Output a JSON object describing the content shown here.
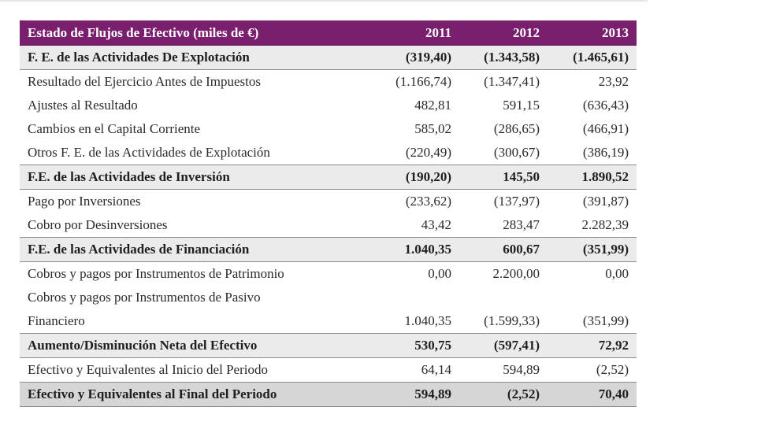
{
  "table": {
    "header": {
      "label": "Estado de Flujos de Efectivo (miles de €)",
      "years": [
        "2011",
        "2012",
        "2013"
      ]
    },
    "rows": [
      {
        "type": "section",
        "label": "F. E. de las Actividades De Explotación",
        "values": [
          "(319,40)",
          "(1.343,58)",
          "(1.465,61)"
        ]
      },
      {
        "type": "item",
        "label": "Resultado del Ejercicio Antes de Impuestos",
        "values": [
          "(1.166,74)",
          "(1.347,41)",
          "23,92"
        ]
      },
      {
        "type": "item",
        "label": "Ajustes al Resultado",
        "values": [
          "482,81",
          "591,15",
          "(636,43)"
        ]
      },
      {
        "type": "item",
        "label": "Cambios en el Capital Corriente",
        "values": [
          "585,02",
          "(286,65)",
          "(466,91)"
        ]
      },
      {
        "type": "item",
        "label": "Otros F. E. de las Actividades de Explotación",
        "values": [
          "(220,49)",
          "(300,67)",
          "(386,19)"
        ]
      },
      {
        "type": "section",
        "label": "F.E. de las Actividades de Inversión",
        "values": [
          "(190,20)",
          "145,50",
          "1.890,52"
        ]
      },
      {
        "type": "item",
        "label": "Pago por Inversiones",
        "values": [
          "(233,62)",
          "(137,97)",
          "(391,87)"
        ]
      },
      {
        "type": "item",
        "label": "Cobro por Desinversiones",
        "values": [
          "43,42",
          "283,47",
          "2.282,39"
        ]
      },
      {
        "type": "section",
        "label": "F.E. de las Actividades de Financiación",
        "values": [
          "1.040,35",
          "600,67",
          "(351,99)"
        ]
      },
      {
        "type": "item",
        "label": "Cobros y pagos por Instrumentos de Patrimonio",
        "values": [
          "0,00",
          "2.200,00",
          "0,00"
        ]
      },
      {
        "type": "item",
        "label": "Cobros y pagos por Instrumentos de Pasivo",
        "values": [
          "",
          "",
          ""
        ]
      },
      {
        "type": "item",
        "label": "Financiero",
        "values": [
          "1.040,35",
          "(1.599,33)",
          "(351,99)"
        ]
      },
      {
        "type": "section",
        "label": "Aumento/Disminución Neta del Efectivo",
        "values": [
          "530,75",
          "(597,41)",
          "72,92"
        ]
      },
      {
        "type": "item",
        "label": "Efectivo y Equivalentes al Inicio del Periodo",
        "values": [
          "64,14",
          "594,89",
          "(2,52)"
        ]
      },
      {
        "type": "total",
        "label": "Efectivo y Equivalentes al Final del Periodo",
        "values": [
          "594,89",
          "(2,52)",
          "70,40"
        ]
      }
    ]
  },
  "colors": {
    "header_bg": "#7a1f6d",
    "header_text": "#ffffff",
    "section_bg": "#ebebeb",
    "total_bg": "#d6d6d6"
  }
}
